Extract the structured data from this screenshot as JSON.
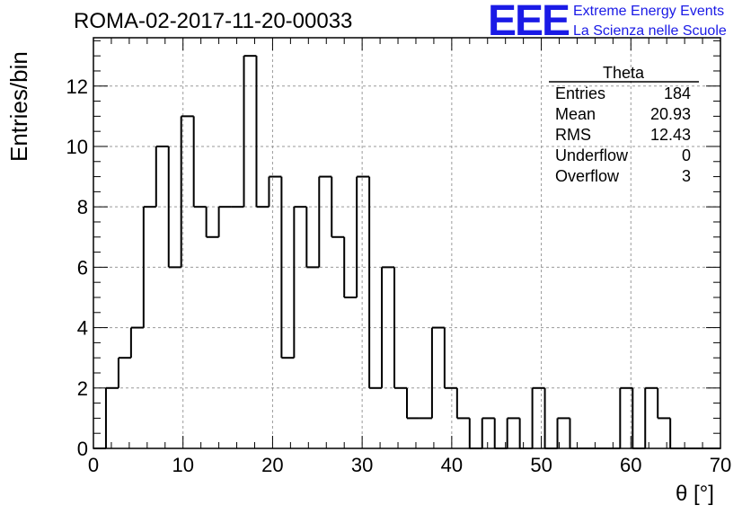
{
  "header": {
    "run_title": "ROMA-02-2017-11-20-00033",
    "logo_text": "EEE",
    "logo_line_1": "Extreme Energy Events",
    "logo_line_2": "La Scienza nelle Scuole"
  },
  "colors": {
    "logo": "#1a1ae6",
    "histogram": "#000000",
    "grid": "#9a9a9a"
  },
  "stats_box": {
    "title": "Theta",
    "rows": [
      {
        "label": "Entries",
        "value": "184"
      },
      {
        "label": "Mean",
        "value": "20.93"
      },
      {
        "label": "RMS",
        "value": "12.43"
      },
      {
        "label": "Underflow",
        "value": "0"
      },
      {
        "label": "Overflow",
        "value": "3"
      }
    ]
  },
  "chart_data": {
    "type": "bar",
    "style": "step histogram",
    "title": "",
    "xlabel": "θ [°]",
    "ylabel": "Entries/bin",
    "xlim": [
      0,
      70
    ],
    "ylim": [
      0,
      13.6
    ],
    "grid": true,
    "bin_width": 1.4,
    "bin_lefts": [
      0,
      1.4,
      2.8,
      4.2,
      5.6,
      7.0,
      8.4,
      9.8,
      11.2,
      12.6,
      14.0,
      15.4,
      16.8,
      18.2,
      19.6,
      21.0,
      22.4,
      23.8,
      25.2,
      26.6,
      28.0,
      29.4,
      30.8,
      32.2,
      33.6,
      35.0,
      36.4,
      37.8,
      39.2,
      40.6,
      42.0,
      43.4,
      44.8,
      46.2,
      47.6,
      49.0,
      50.4,
      51.8,
      53.2,
      54.6,
      56.0,
      57.4,
      58.8,
      60.2,
      61.6,
      63.0,
      64.4,
      65.8,
      67.2,
      68.6
    ],
    "values": [
      0,
      2,
      3,
      4,
      8,
      10,
      6,
      11,
      8,
      7,
      8,
      8,
      13,
      8,
      9,
      3,
      8,
      6,
      9,
      7,
      5,
      9,
      2,
      6,
      2,
      1,
      1,
      4,
      2,
      1,
      0,
      1,
      0,
      1,
      0,
      2,
      0,
      1,
      0,
      0,
      0,
      0,
      2,
      0,
      2,
      1,
      0,
      0,
      0,
      0
    ],
    "x_ticks": [
      "0",
      "10",
      "20",
      "30",
      "40",
      "50",
      "60",
      "70"
    ],
    "y_ticks": [
      "0",
      "2",
      "4",
      "6",
      "8",
      "10",
      "12"
    ]
  }
}
